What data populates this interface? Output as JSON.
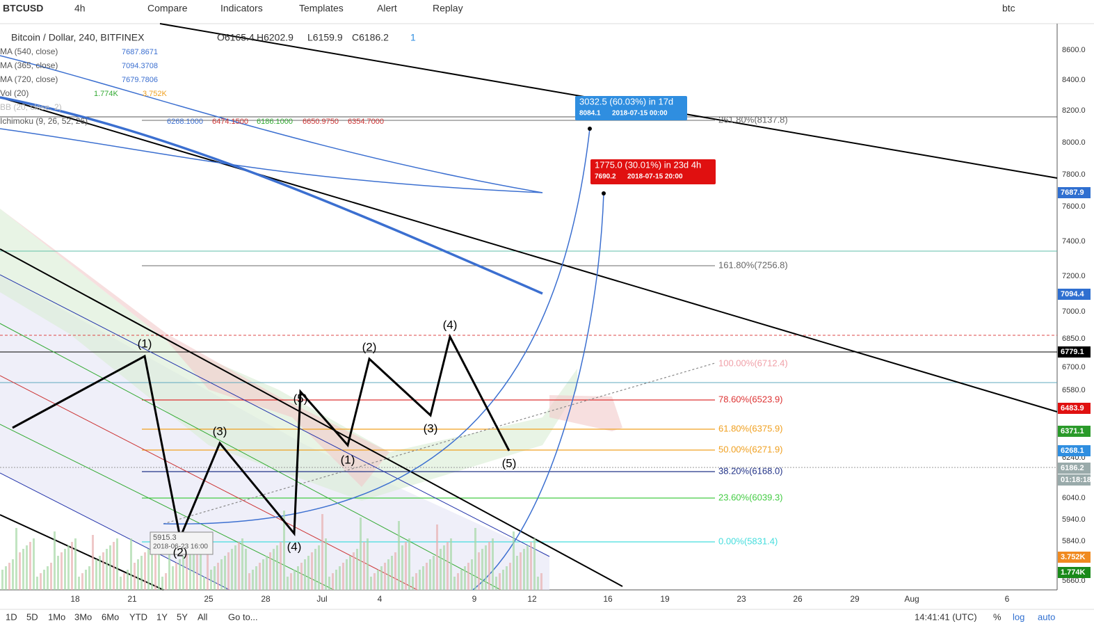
{
  "toolbar": {
    "symbol": "BTCUSD",
    "interval": "4h",
    "compare": "Compare",
    "indicators": "Indicators",
    "templates": "Templates",
    "alert": "Alert",
    "replay": "Replay",
    "watchlist": "btc"
  },
  "legend": {
    "title": "Bitcoin / Dollar, 240, BITFINEX",
    "open": "O6165.4",
    "high": "H6202.9",
    "low": "L6159.9",
    "close": "C6186.2",
    "count": "1",
    "indicators": [
      {
        "name": "MA (540, close)",
        "values": [
          "7687.8671"
        ]
      },
      {
        "name": "MA (365, close)",
        "values": [
          "7094.3708"
        ]
      },
      {
        "name": "MA (720, close)",
        "values": [
          "7679.7806"
        ]
      },
      {
        "name": "Vol (20)",
        "values": [
          "1.774K",
          "3.752K"
        ]
      },
      {
        "name": "BB (20, close, 2)",
        "values": []
      },
      {
        "name": "Ichimoku (9, 26, 52, 26)",
        "values": [
          "6268.1000",
          "6474.1500",
          "6186.1000",
          "6650.9750",
          "6354.7000"
        ]
      }
    ]
  },
  "price_axis": [
    "8600.0",
    "8400.0",
    "8200.0",
    "8000.0",
    "7800.0",
    "7600.0",
    "7400.0",
    "7200.0",
    "7000.0",
    "6850.0",
    "6700.0",
    "6580.0",
    "6240.0",
    "6040.0",
    "5940.0",
    "5840.0",
    "5660.0"
  ],
  "price_badges": [
    "7687.9",
    "7094.4",
    "6779.1",
    "6483.9",
    "6371.1",
    "6268.1",
    "6186.2",
    "01:18:18",
    "3.752K",
    "1.774K"
  ],
  "date_axis": [
    "18",
    "21",
    "25",
    "28",
    "Jul",
    "4",
    "9",
    "12",
    "16",
    "19",
    "23",
    "26",
    "29",
    "Aug",
    "6"
  ],
  "fib_levels": [
    "261.80%(8137.8)",
    "161.80%(7256.8)",
    "100.00%(6712.4)",
    "78.60%(6523.9)",
    "61.80%(6375.9)",
    "50.00%(6271.9)",
    "38.20%(6168.0)",
    "23.60%(6039.3)",
    "0.00%(5831.4)"
  ],
  "waves": [
    "(1)",
    "(2)",
    "(3)",
    "(4)",
    "(5)",
    "(1)",
    "(2)",
    "(3)",
    "(4)",
    "(5)"
  ],
  "callouts": [
    {
      "headline": "3032.5 (60.03%) in 17d",
      "price": "8084.1",
      "date": "2018-07-15  00:00"
    },
    {
      "headline": "1775.0 (30.01%) in 23d 4h",
      "price": "7690.2",
      "date": "2018-07-15  20:00"
    },
    {
      "headline": "5915.3",
      "price": "",
      "date": "2018-06-23 16:00"
    }
  ],
  "bottom_bar": {
    "ranges": [
      "1D",
      "5D",
      "1Mo",
      "3Mo",
      "6Mo",
      "YTD",
      "1Y",
      "5Y",
      "All"
    ],
    "goto": "Go to...",
    "clock": "14:41:41 (UTC)",
    "percent": "%",
    "log": "log",
    "auto": "auto"
  }
}
